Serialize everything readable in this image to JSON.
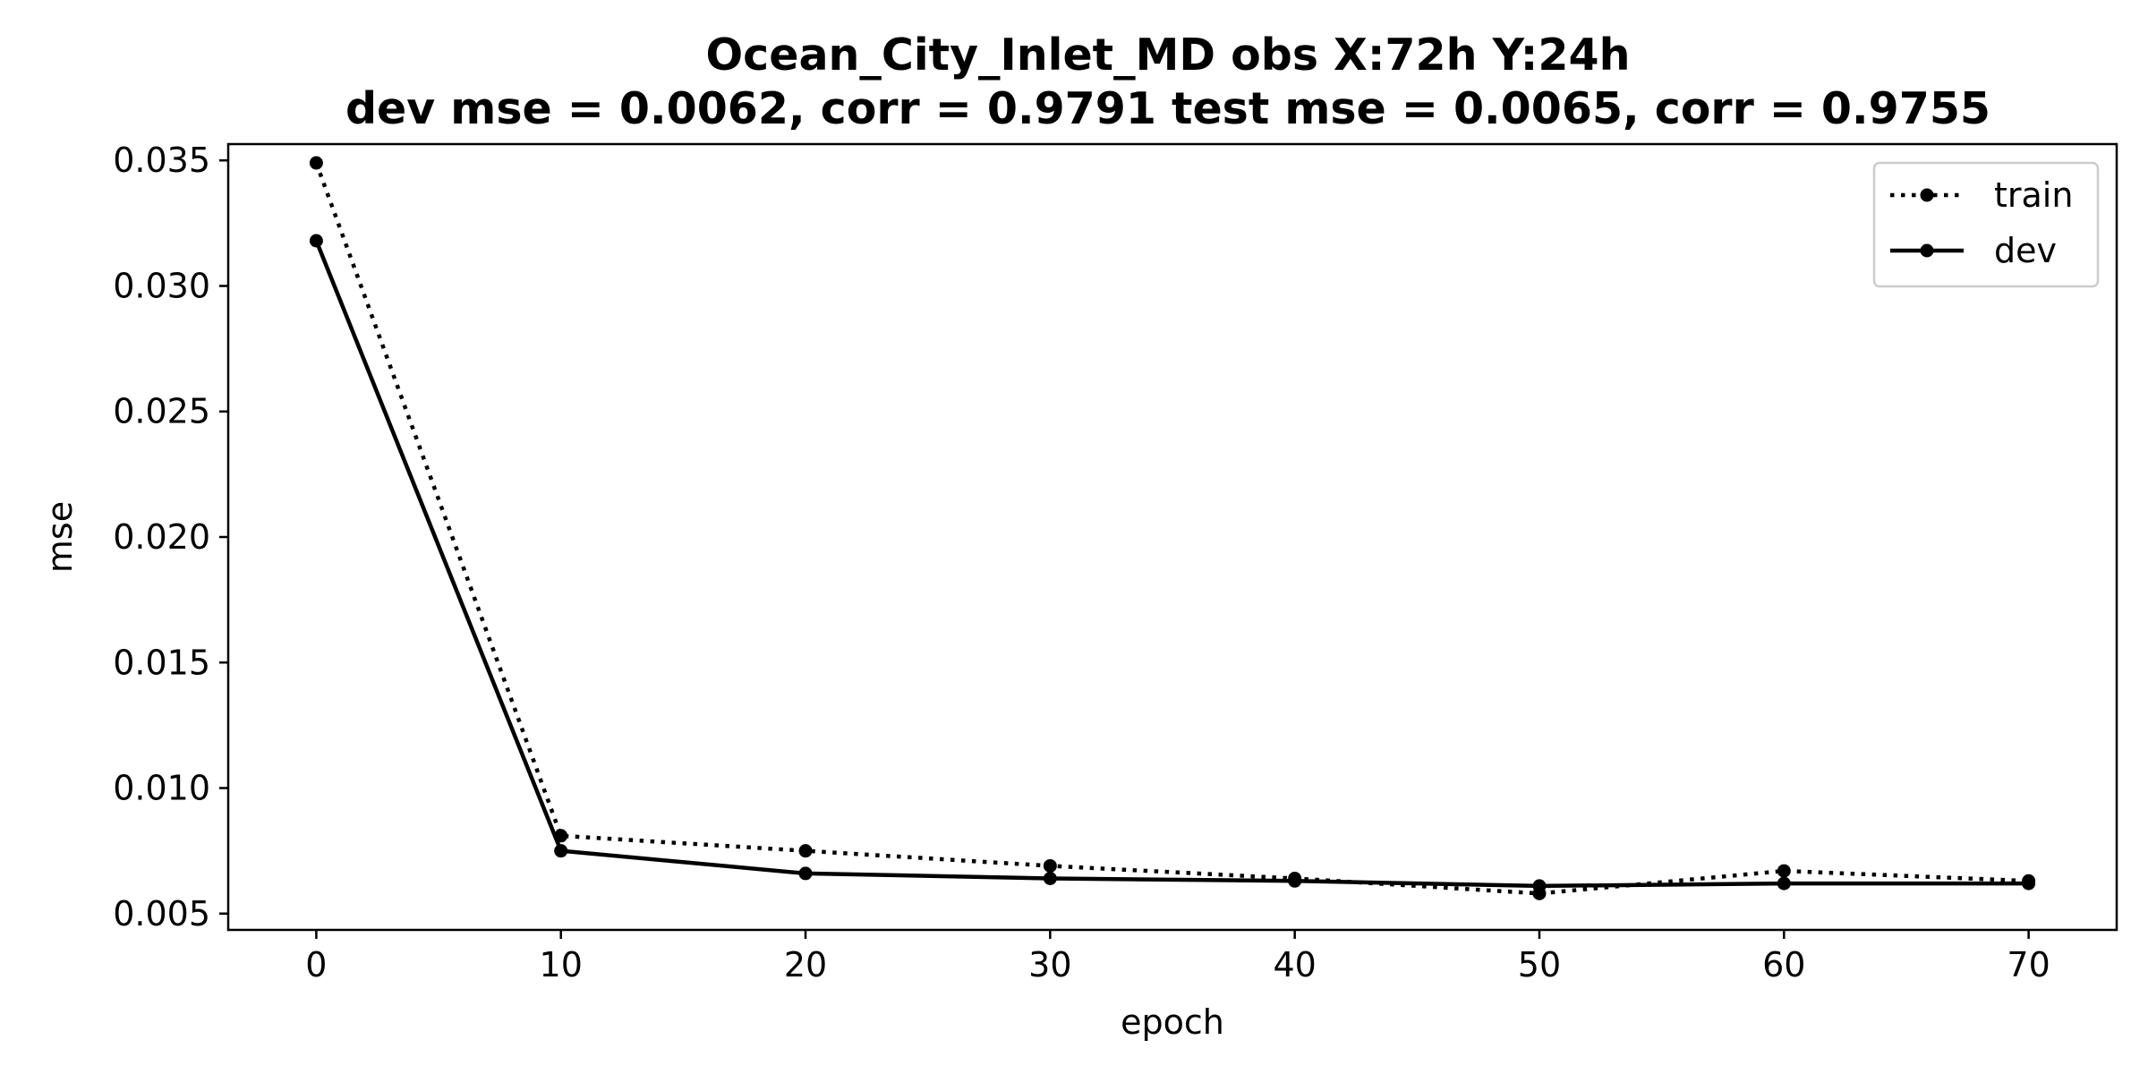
{
  "chart_data": {
    "type": "line",
    "title": "Ocean_City_Inlet_MD   obs   X:72h   Y:24h",
    "subtitle": "dev mse = 0.0062, corr = 0.9791   test mse = 0.0065, corr = 0.9755",
    "xlabel": "epoch",
    "ylabel": "mse",
    "xlim": [
      -3.6,
      73.6
    ],
    "ylim": [
      0.00435,
      0.03565
    ],
    "xticks": [
      0,
      10,
      20,
      30,
      40,
      50,
      60,
      70
    ],
    "xtick_labels": [
      "0",
      "10",
      "20",
      "30",
      "40",
      "50",
      "60",
      "70"
    ],
    "yticks": [
      0.005,
      0.01,
      0.015,
      0.02,
      0.025,
      0.03,
      0.035
    ],
    "ytick_labels": [
      "0.005",
      "0.010",
      "0.015",
      "0.020",
      "0.025",
      "0.030",
      "0.035"
    ],
    "grid": false,
    "legend_position": "top-right",
    "x": [
      0,
      10,
      20,
      30,
      40,
      50,
      60,
      70
    ],
    "series": [
      {
        "name": "train",
        "line_style": "dotted",
        "marker": "circle",
        "color": "#000000",
        "values": [
          0.0349,
          0.0081,
          0.0075,
          0.0069,
          0.0064,
          0.0058,
          0.0067,
          0.0063
        ]
      },
      {
        "name": "dev",
        "line_style": "solid",
        "marker": "circle",
        "color": "#000000",
        "values": [
          0.0318,
          0.0075,
          0.0066,
          0.0064,
          0.0063,
          0.0061,
          0.0062,
          0.0062
        ]
      }
    ]
  }
}
